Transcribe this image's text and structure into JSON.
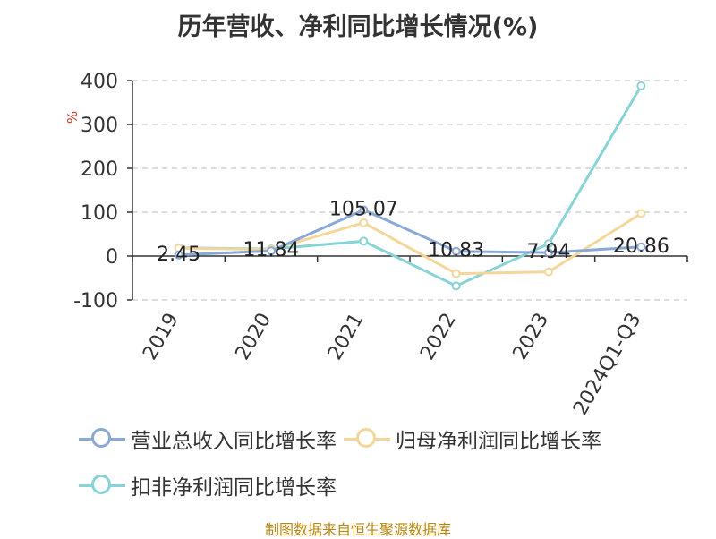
{
  "title": "历年营收、净利同比增长情况(%)",
  "unit_label": "%",
  "source": "制图数据来自恒生聚源数据库",
  "chart_data": {
    "type": "line",
    "categories": [
      "2019",
      "2020",
      "2021",
      "2022",
      "2023",
      "2024Q1-Q3"
    ],
    "ylim": [
      -100,
      400
    ],
    "yticks": [
      -100,
      0,
      100,
      200,
      300,
      400
    ],
    "grid": true,
    "legend_position": "bottom",
    "series": [
      {
        "name": "营业总收入同比增长率",
        "color": "#8aa8d6",
        "values": [
          2.45,
          11.84,
          105.07,
          10.83,
          7.94,
          20.86
        ],
        "labels": [
          "2.45",
          "11.84",
          "105.07",
          "10.83",
          "7.94",
          "20.86"
        ]
      },
      {
        "name": "归母净利润同比增长率",
        "color": "#f5d69a",
        "values": [
          18,
          15,
          76,
          -40,
          -36,
          97
        ]
      },
      {
        "name": "扣非净利润同比增长率",
        "color": "#88d3d6",
        "values": [
          19,
          16,
          34,
          -68,
          28,
          388
        ]
      }
    ]
  }
}
